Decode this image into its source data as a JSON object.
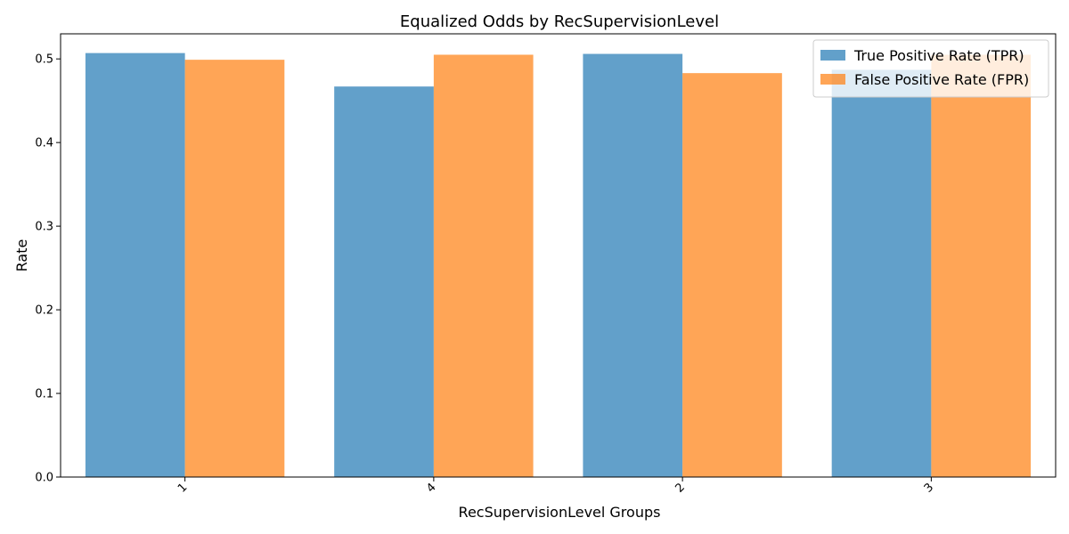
{
  "chart_data": {
    "type": "bar",
    "title": "Equalized Odds by RecSupervisionLevel",
    "xlabel": "RecSupervisionLevel Groups",
    "ylabel": "Rate",
    "categories": [
      "1",
      "4",
      "2",
      "3"
    ],
    "series": [
      {
        "name": "True Positive Rate (TPR)",
        "color": "#1f77b4",
        "values": [
          0.507,
          0.467,
          0.506,
          0.487
        ]
      },
      {
        "name": "False Positive Rate (FPR)",
        "color": "#ff7f0e",
        "values": [
          0.499,
          0.505,
          0.483,
          0.505
        ]
      }
    ],
    "ylim": [
      0,
      0.53
    ],
    "yticks": [
      0.0,
      0.1,
      0.2,
      0.3,
      0.4,
      0.5
    ],
    "ytick_labels": [
      "0.0",
      "0.1",
      "0.2",
      "0.3",
      "0.4",
      "0.5"
    ],
    "bar_opacity": 0.7,
    "grid": false,
    "legend_position": "top-right",
    "xtick_rotation": "45"
  }
}
